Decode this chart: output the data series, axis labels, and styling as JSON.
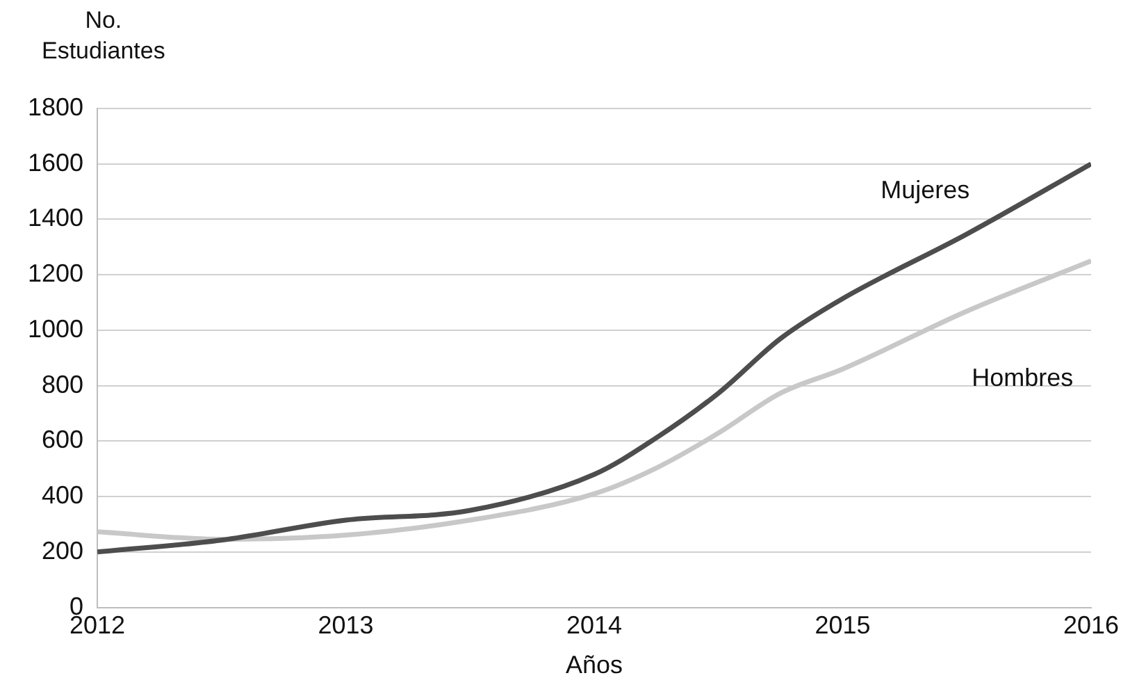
{
  "chart_data": {
    "type": "line",
    "xlabel": "Años",
    "ylabel": "No.\nEstudiantes",
    "xlim": [
      2012,
      2016
    ],
    "xticks": [
      2012,
      2013,
      2014,
      2015,
      2016
    ],
    "ylim": [
      0,
      1800
    ],
    "yticks": [
      0,
      200,
      400,
      600,
      800,
      1000,
      1200,
      1400,
      1600,
      1800
    ],
    "grid": "y",
    "legend": false,
    "marker": "none",
    "line_style": "solid",
    "series": [
      {
        "name": "Mujeres",
        "color": "#4d4d4d",
        "x": [
          2012,
          2012.5,
          2013,
          2013.5,
          2014,
          2014.25,
          2014.5,
          2014.75,
          2015,
          2015.5,
          2016
        ],
        "values": [
          200,
          243,
          315,
          350,
          480,
          612,
          773,
          970,
          1114,
          1347,
          1600
        ]
      },
      {
        "name": "Hombres",
        "color": "#c8c8c8",
        "x": [
          2012,
          2012.5,
          2013,
          2013.5,
          2014,
          2014.25,
          2014.5,
          2014.75,
          2015,
          2015.5,
          2016
        ],
        "values": [
          273,
          246,
          261,
          315,
          410,
          503,
          629,
          773,
          860,
          1069,
          1250
        ]
      }
    ]
  }
}
